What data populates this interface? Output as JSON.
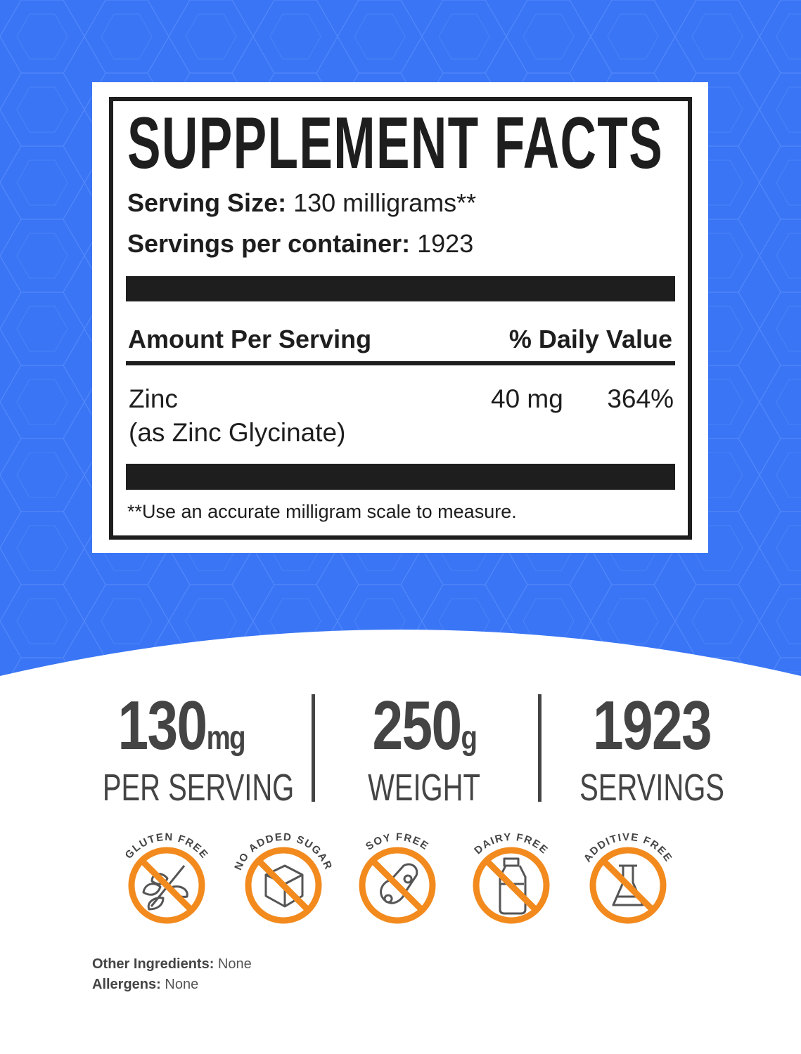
{
  "colors": {
    "background_blue": "#3a75f5",
    "accent_orange": "#f28a1e",
    "text_dark": "#1e1e1e",
    "text_grey": "#444444"
  },
  "label": {
    "title": "SUPPLEMENT FACTS",
    "serving_size_label": "Serving Size:",
    "serving_size_value": "130 milligrams**",
    "servings_label": "Servings per container:",
    "servings_value": "1923",
    "amount_header": "Amount Per Serving",
    "dv_header": "% Daily Value",
    "nutrient": {
      "name": "Zinc",
      "source": "(as Zinc Glycinate)",
      "amount": "40 mg",
      "dv": "364%"
    },
    "footnote": "**Use an accurate milligram scale to measure."
  },
  "stats": [
    {
      "number": "130",
      "unit": "mg",
      "caption": "PER SERVING"
    },
    {
      "number": "250",
      "unit": "g",
      "caption": "WEIGHT"
    },
    {
      "number": "1923",
      "unit": "",
      "caption": "SERVINGS"
    }
  ],
  "badges": [
    {
      "text": "GLUTEN FREE",
      "icon": "wheat-icon"
    },
    {
      "text": "NO ADDED SUGAR",
      "icon": "sugar-cube-icon"
    },
    {
      "text": "SOY FREE",
      "icon": "soybean-icon"
    },
    {
      "text": "DAIRY FREE",
      "icon": "milk-bottle-icon"
    },
    {
      "text": "ADDITIVE FREE",
      "icon": "flask-icon"
    }
  ],
  "footer": {
    "other_label": "Other Ingredients:",
    "other_value": "None",
    "allergens_label": "Allergens:",
    "allergens_value": "None"
  }
}
